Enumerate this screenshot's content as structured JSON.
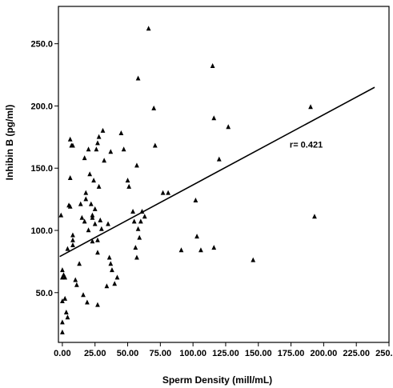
{
  "chart_data": {
    "type": "scatter",
    "title": "",
    "xlabel": "Sperm Density (mill/mL)",
    "ylabel": "Inhibin B (pg/ml)",
    "xlim": [
      -3,
      250
    ],
    "ylim": [
      10,
      280
    ],
    "x_ticks": [
      0,
      25,
      50,
      75,
      100,
      125,
      150,
      175,
      200,
      225,
      250
    ],
    "x_tick_labels": [
      "0.00",
      "25.00",
      "50.00",
      "75.00",
      "100.00",
      "125.00",
      "150.00",
      "175.00",
      "200.00",
      "225.00",
      "250.00"
    ],
    "y_ticks": [
      50,
      100,
      150,
      200,
      250
    ],
    "y_tick_labels": [
      "50.0",
      "100.0",
      "150.0",
      "200.0",
      "250.0"
    ],
    "grid": false,
    "legend": "none",
    "annotation": "r= 0.421",
    "marker_color": "#000000",
    "series": [
      {
        "values": [
          [
            -1,
            112
          ],
          [
            0,
            68
          ],
          [
            0,
            62
          ],
          [
            0,
            43
          ],
          [
            0,
            26
          ],
          [
            0,
            18
          ],
          [
            1,
            64
          ],
          [
            2,
            62
          ],
          [
            2,
            45
          ],
          [
            3,
            34
          ],
          [
            4,
            30
          ],
          [
            4,
            85
          ],
          [
            5,
            120
          ],
          [
            6,
            119
          ],
          [
            6,
            142
          ],
          [
            6,
            173
          ],
          [
            7,
            168
          ],
          [
            8,
            168
          ],
          [
            8,
            96
          ],
          [
            8,
            88
          ],
          [
            8,
            92
          ],
          [
            10,
            60
          ],
          [
            11,
            56
          ],
          [
            13,
            73
          ],
          [
            14,
            121
          ],
          [
            15,
            110
          ],
          [
            16,
            48
          ],
          [
            17,
            107
          ],
          [
            17,
            158
          ],
          [
            18,
            130
          ],
          [
            18,
            125
          ],
          [
            19,
            42
          ],
          [
            20,
            165
          ],
          [
            20,
            100
          ],
          [
            21,
            145
          ],
          [
            22,
            121
          ],
          [
            23,
            110
          ],
          [
            23,
            91
          ],
          [
            23,
            112
          ],
          [
            24,
            140
          ],
          [
            25,
            105
          ],
          [
            25,
            117
          ],
          [
            26,
            165
          ],
          [
            27,
            92
          ],
          [
            27,
            170
          ],
          [
            27,
            82
          ],
          [
            27,
            40
          ],
          [
            28,
            175
          ],
          [
            28,
            135
          ],
          [
            29,
            108
          ],
          [
            30,
            101
          ],
          [
            31,
            180
          ],
          [
            32,
            156
          ],
          [
            34,
            55
          ],
          [
            35,
            105
          ],
          [
            36,
            78
          ],
          [
            37,
            73
          ],
          [
            37,
            163
          ],
          [
            38,
            68
          ],
          [
            40,
            57
          ],
          [
            42,
            62
          ],
          [
            45,
            178
          ],
          [
            47,
            165
          ],
          [
            50,
            140
          ],
          [
            51,
            135
          ],
          [
            54,
            115
          ],
          [
            55,
            107
          ],
          [
            56,
            86
          ],
          [
            57,
            152
          ],
          [
            57,
            78
          ],
          [
            58,
            101
          ],
          [
            58,
            222
          ],
          [
            59,
            94
          ],
          [
            60,
            107
          ],
          [
            61,
            115
          ],
          [
            63,
            111
          ],
          [
            66,
            262
          ],
          [
            70,
            198
          ],
          [
            71,
            168
          ],
          [
            77,
            130
          ],
          [
            81,
            130
          ],
          [
            91,
            84
          ],
          [
            102,
            124
          ],
          [
            103,
            95
          ],
          [
            106,
            84
          ],
          [
            115,
            232
          ],
          [
            116,
            190
          ],
          [
            116,
            86
          ],
          [
            120,
            157
          ],
          [
            127,
            183
          ],
          [
            146,
            76
          ],
          [
            190,
            199
          ],
          [
            193,
            111
          ]
        ]
      }
    ],
    "trendline": {
      "x": [
        -2,
        239
      ],
      "y": [
        79,
        215
      ]
    }
  }
}
